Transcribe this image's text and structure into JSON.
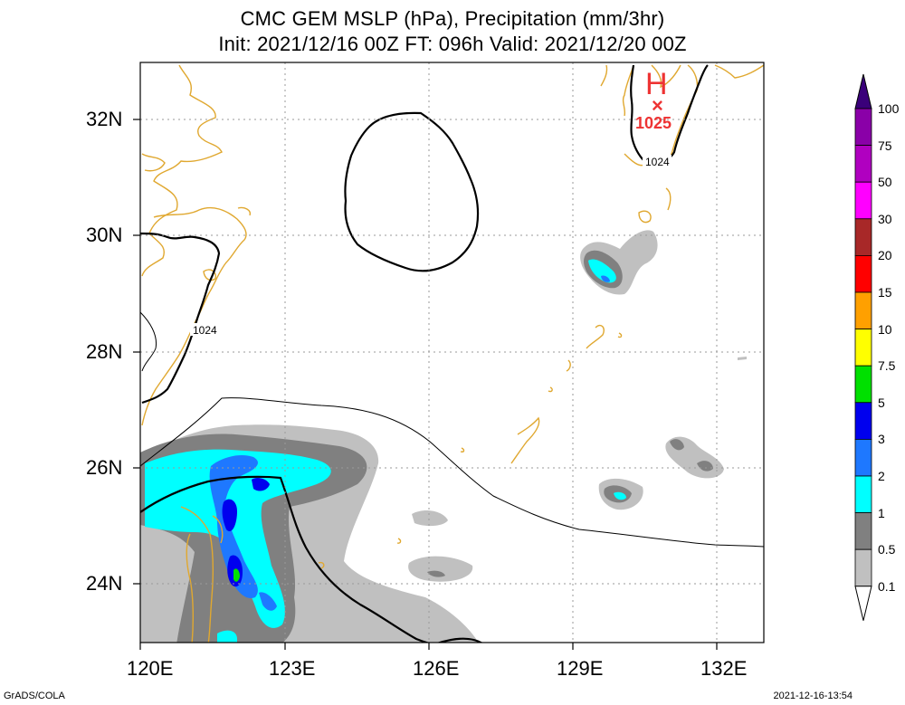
{
  "title": {
    "line1": "CMC GEM MSLP (hPa), Precipitation (mm/3hr)",
    "line2": "Init: 2021/12/16 00Z  FT: 096h  Valid: 2021/12/20 00Z"
  },
  "axes": {
    "x_ticks": [
      "120E",
      "123E",
      "126E",
      "129E",
      "132E"
    ],
    "y_ticks": [
      "32N",
      "30N",
      "28N",
      "26N",
      "24N"
    ],
    "lon_range": [
      120,
      133
    ],
    "lat_range": [
      23,
      33
    ]
  },
  "high": {
    "symbol": "H",
    "marker": "×",
    "value": "1025",
    "color": "#ee3333"
  },
  "isobar_labels": [
    "1024",
    "1024"
  ],
  "colorbar": {
    "labels": [
      "100",
      "75",
      "50",
      "30",
      "20",
      "15",
      "10",
      "7.5",
      "5",
      "3",
      "2",
      "1",
      "0.5",
      "0.1"
    ],
    "colors": [
      "#8a00a8",
      "#b000c0",
      "#ff00ff",
      "#a82828",
      "#ff0000",
      "#ffa000",
      "#ffff00",
      "#00e000",
      "#0000ee",
      "#1e78ff",
      "#00ffff",
      "#808080",
      "#c0c0c0",
      "#ffffff"
    ],
    "top_color": "#3a007a"
  },
  "colors": {
    "coast": "#e0a830",
    "isobar": "#000000",
    "grid": "#9a9a9a"
  },
  "footer": {
    "left": "GrADS/COLA",
    "right": "2021-12-16-13:54"
  }
}
